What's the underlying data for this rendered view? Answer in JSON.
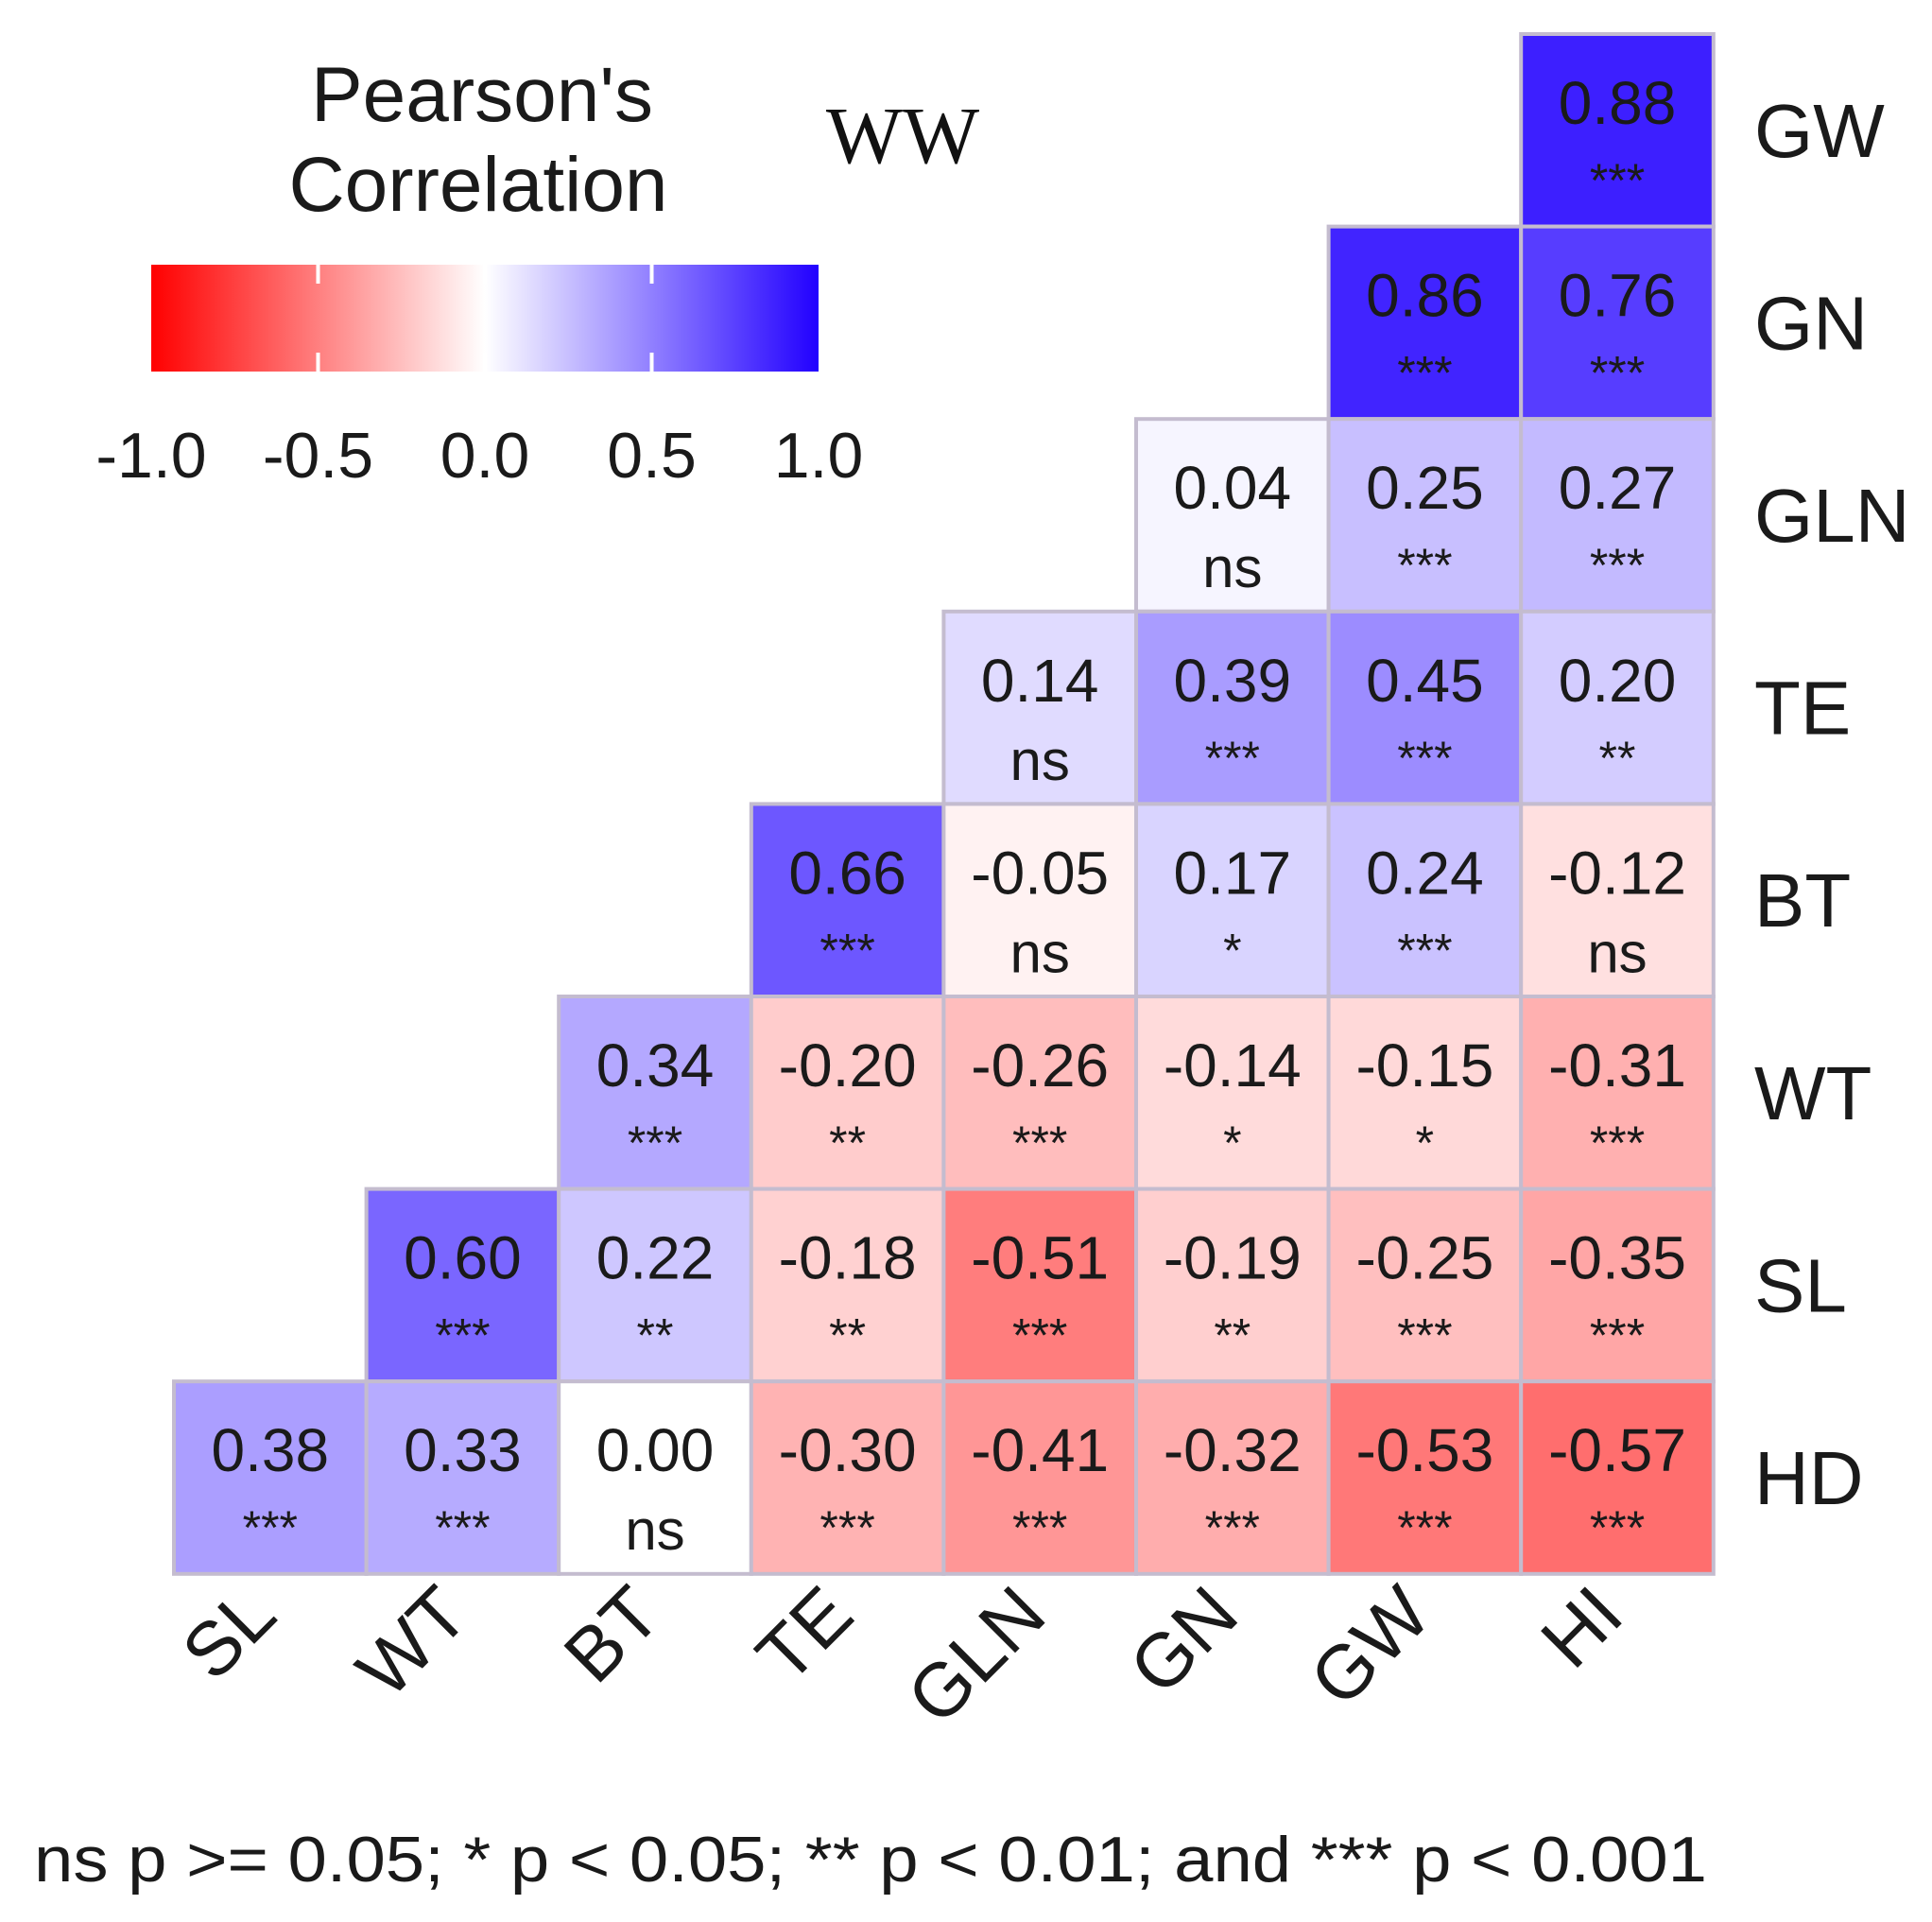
{
  "chart_data": {
    "type": "heatmap",
    "title": "WW",
    "legend": {
      "title_line1": "Pearson's",
      "title_line2": "Correlation",
      "ticks": [
        "-1.0",
        "-0.5",
        "0.0",
        "0.5",
        "1.0"
      ],
      "range": [
        -1.0,
        1.0
      ],
      "colors": {
        "low": "#ff0000",
        "mid": "#ffffff",
        "high": "#2200ff"
      }
    },
    "x_labels": [
      "SL",
      "WT",
      "BT",
      "TE",
      "GLN",
      "GN",
      "GW",
      "HI"
    ],
    "y_labels": [
      "GW",
      "GN",
      "GLN",
      "TE",
      "BT",
      "WT",
      "SL",
      "HD"
    ],
    "cells": [
      {
        "row": "GW",
        "col": "HI",
        "value": "0.88",
        "sig": "***"
      },
      {
        "row": "GN",
        "col": "GW",
        "value": "0.86",
        "sig": "***"
      },
      {
        "row": "GN",
        "col": "HI",
        "value": "0.76",
        "sig": "***"
      },
      {
        "row": "GLN",
        "col": "GN",
        "value": "0.04",
        "sig": "ns"
      },
      {
        "row": "GLN",
        "col": "GW",
        "value": "0.25",
        "sig": "***"
      },
      {
        "row": "GLN",
        "col": "HI",
        "value": "0.27",
        "sig": "***"
      },
      {
        "row": "TE",
        "col": "GLN",
        "value": "0.14",
        "sig": "ns"
      },
      {
        "row": "TE",
        "col": "GN",
        "value": "0.39",
        "sig": "***"
      },
      {
        "row": "TE",
        "col": "GW",
        "value": "0.45",
        "sig": "***"
      },
      {
        "row": "TE",
        "col": "HI",
        "value": "0.20",
        "sig": "**"
      },
      {
        "row": "BT",
        "col": "TE",
        "value": "0.66",
        "sig": "***"
      },
      {
        "row": "BT",
        "col": "GLN",
        "value": "-0.05",
        "sig": "ns"
      },
      {
        "row": "BT",
        "col": "GN",
        "value": "0.17",
        "sig": "*"
      },
      {
        "row": "BT",
        "col": "GW",
        "value": "0.24",
        "sig": "***"
      },
      {
        "row": "BT",
        "col": "HI",
        "value": "-0.12",
        "sig": "ns"
      },
      {
        "row": "WT",
        "col": "BT",
        "value": "0.34",
        "sig": "***"
      },
      {
        "row": "WT",
        "col": "TE",
        "value": "-0.20",
        "sig": "**"
      },
      {
        "row": "WT",
        "col": "GLN",
        "value": "-0.26",
        "sig": "***"
      },
      {
        "row": "WT",
        "col": "GN",
        "value": "-0.14",
        "sig": "*"
      },
      {
        "row": "WT",
        "col": "GW",
        "value": "-0.15",
        "sig": "*"
      },
      {
        "row": "WT",
        "col": "HI",
        "value": "-0.31",
        "sig": "***"
      },
      {
        "row": "SL",
        "col": "WT",
        "value": "0.60",
        "sig": "***"
      },
      {
        "row": "SL",
        "col": "BT",
        "value": "0.22",
        "sig": "**"
      },
      {
        "row": "SL",
        "col": "TE",
        "value": "-0.18",
        "sig": "**"
      },
      {
        "row": "SL",
        "col": "GLN",
        "value": "-0.51",
        "sig": "***"
      },
      {
        "row": "SL",
        "col": "GN",
        "value": "-0.19",
        "sig": "**"
      },
      {
        "row": "SL",
        "col": "GW",
        "value": "-0.25",
        "sig": "***"
      },
      {
        "row": "SL",
        "col": "HI",
        "value": "-0.35",
        "sig": "***"
      },
      {
        "row": "HD",
        "col": "SL",
        "value": "0.38",
        "sig": "***"
      },
      {
        "row": "HD",
        "col": "WT",
        "value": "0.33",
        "sig": "***"
      },
      {
        "row": "HD",
        "col": "BT",
        "value": "0.00",
        "sig": "ns"
      },
      {
        "row": "HD",
        "col": "TE",
        "value": "-0.30",
        "sig": "***"
      },
      {
        "row": "HD",
        "col": "GLN",
        "value": "-0.41",
        "sig": "***"
      },
      {
        "row": "HD",
        "col": "GN",
        "value": "-0.32",
        "sig": "***"
      },
      {
        "row": "HD",
        "col": "GW",
        "value": "-0.53",
        "sig": "***"
      },
      {
        "row": "HD",
        "col": "HI",
        "value": "-0.57",
        "sig": "***"
      }
    ],
    "footnote": "ns p >= 0.05; * p < 0.05; ** p < 0.01; and *** p < 0.001"
  }
}
